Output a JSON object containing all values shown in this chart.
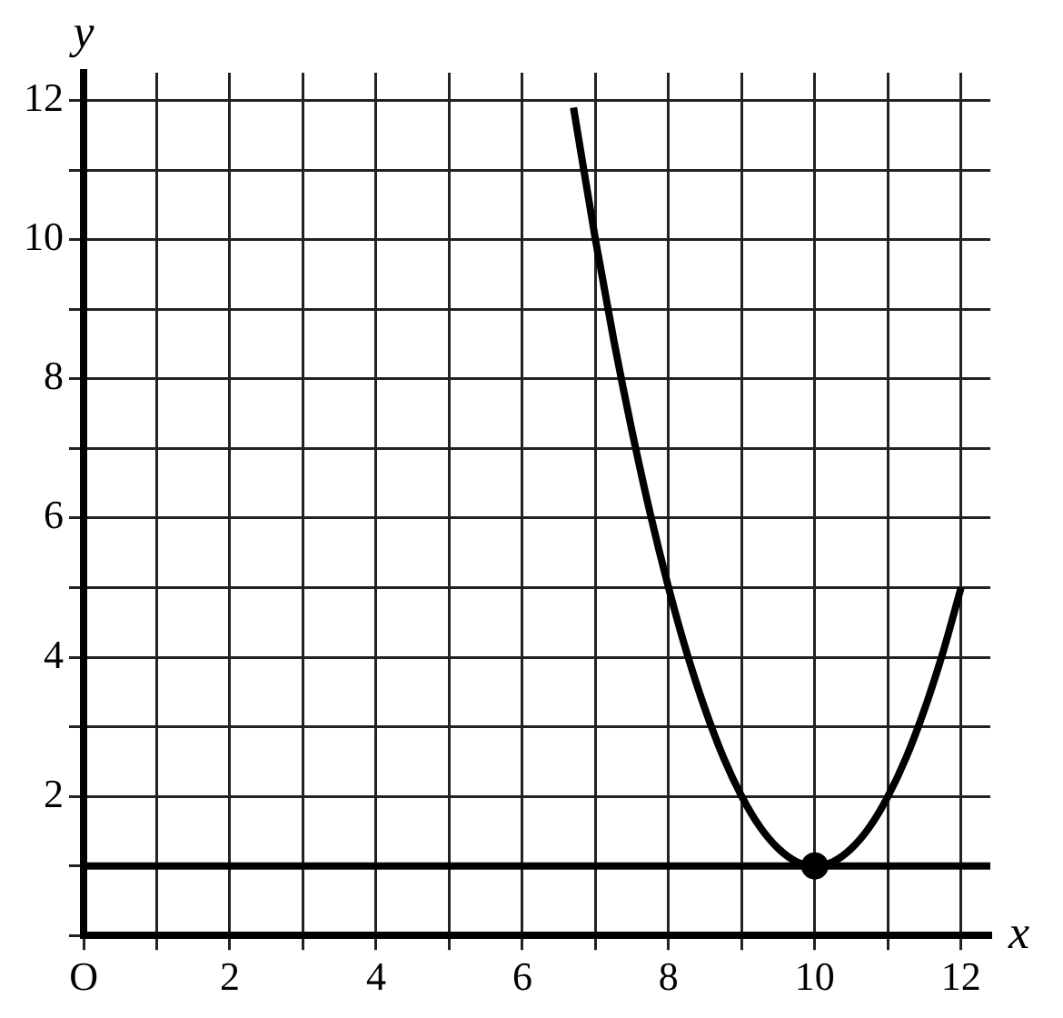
{
  "chart_data": {
    "type": "line",
    "xlabel": "x",
    "ylabel": "y",
    "xlim": [
      0,
      12.4
    ],
    "ylim": [
      0,
      12.4
    ],
    "xticks": [
      {
        "value": 0,
        "label": "O"
      },
      {
        "value": 1,
        "label": null
      },
      2,
      {
        "value": 3,
        "label": null
      },
      4,
      {
        "value": 5,
        "label": null
      },
      6,
      {
        "value": 7,
        "label": null
      },
      8,
      {
        "value": 9,
        "label": null
      },
      10,
      {
        "value": 11,
        "label": null
      },
      12
    ],
    "yticks": [
      {
        "value": 0,
        "label": null
      },
      {
        "value": 1,
        "label": null
      },
      2,
      {
        "value": 3,
        "label": null
      },
      4,
      {
        "value": 5,
        "label": null
      },
      6,
      {
        "value": 7,
        "label": null
      },
      8,
      {
        "value": 9,
        "label": null
      },
      10,
      {
        "value": 11,
        "label": null
      },
      12
    ],
    "grid": true,
    "legend": false,
    "line_style": "solid",
    "marker": "none",
    "series": [
      {
        "color": "#000000",
        "x": [
          6.7,
          7,
          7.25,
          7.5,
          7.75,
          8,
          8.25,
          8.5,
          8.75,
          9,
          9.25,
          9.5,
          9.75,
          10,
          10.25,
          10.5,
          10.75,
          11,
          11.25,
          11.5,
          11.75,
          12
        ],
        "values": [
          11.9,
          10,
          8.56,
          7.25,
          6.06,
          5,
          4.06,
          3.25,
          2.56,
          2,
          1.56,
          1.25,
          1.06,
          1,
          1.06,
          1.25,
          1.56,
          2,
          2.56,
          3.25,
          4.06,
          5
        ]
      },
      {
        "type": "scatter",
        "color": "#000000",
        "x": [
          10
        ],
        "values": [
          1
        ],
        "marker": "circle"
      }
    ],
    "ref_lines": [
      {
        "axis": "y",
        "value": 1,
        "color": "#000000",
        "line_style": "solid"
      }
    ]
  }
}
